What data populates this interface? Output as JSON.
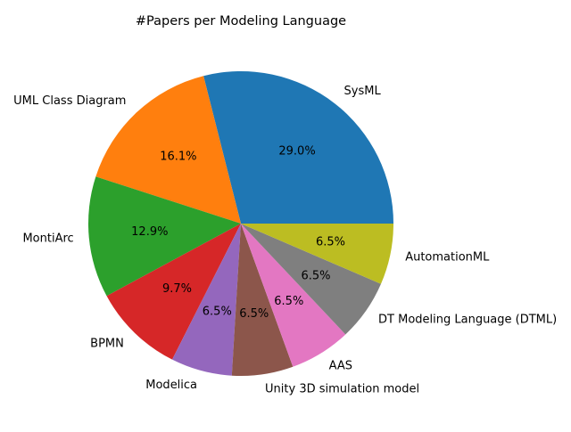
{
  "chart_data": {
    "type": "pie",
    "title": "#Papers per Modeling Language",
    "slices": [
      {
        "label": "SysML",
        "percent_label": "29.0%",
        "value": 29.0,
        "color": "#1f77b4"
      },
      {
        "label": "UML Class Diagram",
        "percent_label": "16.1%",
        "value": 16.1,
        "color": "#ff7f0e"
      },
      {
        "label": "MontiArc",
        "percent_label": "12.9%",
        "value": 12.9,
        "color": "#2ca02c"
      },
      {
        "label": "BPMN",
        "percent_label": "9.7%",
        "value": 9.7,
        "color": "#d62728"
      },
      {
        "label": "Modelica",
        "percent_label": "6.5%",
        "value": 6.5,
        "color": "#9467bd"
      },
      {
        "label": "Unity 3D simulation model",
        "percent_label": "6.5%",
        "value": 6.5,
        "color": "#8c564b"
      },
      {
        "label": "AAS",
        "percent_label": "6.5%",
        "value": 6.5,
        "color": "#e377c2"
      },
      {
        "label": "DT Modeling Language (DTML)",
        "percent_label": "6.5%",
        "value": 6.5,
        "color": "#7f7f7f"
      },
      {
        "label": "AutomationML",
        "percent_label": "6.5%",
        "value": 6.5,
        "color": "#bcbd22"
      }
    ],
    "start_angle": "0° (3 o'clock), counter-clockwise",
    "legend": "none"
  }
}
